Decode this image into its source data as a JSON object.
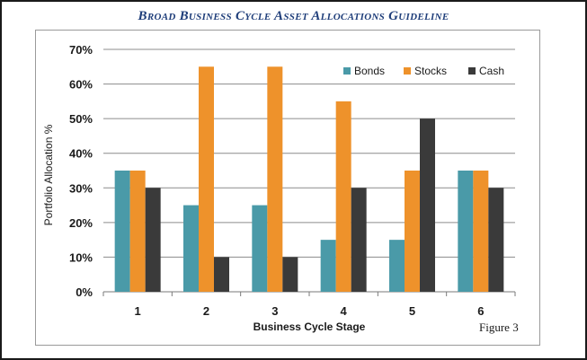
{
  "chart_data": {
    "type": "bar",
    "title": "Broad Business Cycle Asset Allocations Guideline",
    "xlabel": "Business Cycle Stage",
    "ylabel": "Portfolio Allocation %",
    "categories": [
      "1",
      "2",
      "3",
      "4",
      "5",
      "6"
    ],
    "series": [
      {
        "name": "Bonds",
        "color": "#4a9aa8",
        "values": [
          0.35,
          0.25,
          0.25,
          0.15,
          0.15,
          0.35
        ]
      },
      {
        "name": "Stocks",
        "color": "#ee922b",
        "values": [
          0.35,
          0.65,
          0.65,
          0.55,
          0.35,
          0.35
        ]
      },
      {
        "name": "Cash",
        "color": "#3a3a3a",
        "values": [
          0.3,
          0.1,
          0.1,
          0.3,
          0.5,
          0.3
        ]
      }
    ],
    "ylim": [
      0,
      0.7
    ],
    "yticks": [
      "0%",
      "10%",
      "20%",
      "30%",
      "40%",
      "50%",
      "60%",
      "70%"
    ],
    "grid": true,
    "legend": "top-right"
  },
  "figure_label": "Figure 3"
}
